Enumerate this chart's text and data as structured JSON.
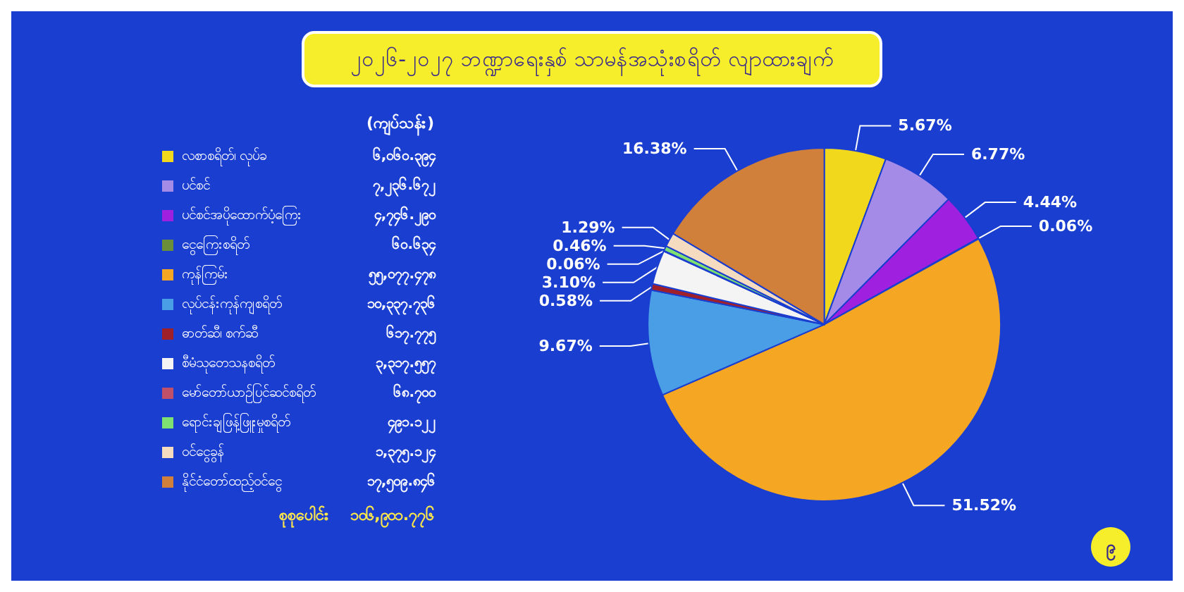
{
  "chart_data": {
    "type": "pie",
    "title": "၂၀၂၆-၂၀၂၇ ဘဏ္ဍာရေးနှစ် သာမန်အသုံးစရိတ် လျာထားချက်",
    "categories": [
      "လစာစရိတ်၊ လုပ်ခ",
      "ပင်စင်",
      "ပင်စင်အပိုထောက်ပံ့ကြေး",
      "ငွေကြေးစရိတ်",
      "ကုန်ကြမ်း",
      "လုပ်ငန်းကုန်ကျစရိတ်",
      "ဓာတ်ဆီ၊ စက်ဆီ",
      "စီမံသုတေသနစရိတ်",
      "မော်တော်ယာဉ်ပြင်ဆင်စရိတ်",
      "ရောင်းချဖြန့်ဖြူးမှုစရိတ်",
      "ဝင်ငွေခွန်",
      "နိုင်ငံတော်ထည့်ဝင်ငွေ"
    ],
    "values": [
      5.67,
      6.77,
      4.44,
      0.06,
      51.52,
      9.67,
      0.58,
      3.1,
      0.06,
      0.46,
      1.29,
      16.38
    ],
    "value_labels": [
      "5.67%",
      "6.77%",
      "4.44%",
      "0.06%",
      "51.52%",
      "9.67%",
      "0.58%",
      "3.10%",
      "0.06%",
      "0.46%",
      "1.29%",
      "16.38%"
    ],
    "colors": [
      "#f2d81c",
      "#a58be8",
      "#a020e0",
      "#6b8e3a",
      "#f5a623",
      "#4a9ee6",
      "#a0202a",
      "#f4f4f4",
      "#c0506a",
      "#7ee070",
      "#f5dcc0",
      "#d0803a"
    ],
    "annotations": [
      "(ကျပ်သန်း)",
      "၆,၀၆၀.၃၉၄",
      "၇,၂၃၆.၆၇၂",
      "၄,၇၄၆.၂၉၀",
      "၆၀.၆၃၄",
      "၅၅,၀၇၇.၄၇၈",
      "၁၀,၃၃၇.၇၃၆",
      "၆၁၇.၇၇၅",
      "၃,၃၁၇.၅၅၇",
      "၆၈.၇၀၀",
      "၄၉၁.၁၂၂",
      "၁,၃၇၅.၁၂၄",
      "၁၇,၅၀၉.၈၄၆",
      "စုစုပေါင်း",
      "၁၀၆,၉၀၁.၇၇၆",
      "၉"
    ],
    "legend": "left"
  }
}
